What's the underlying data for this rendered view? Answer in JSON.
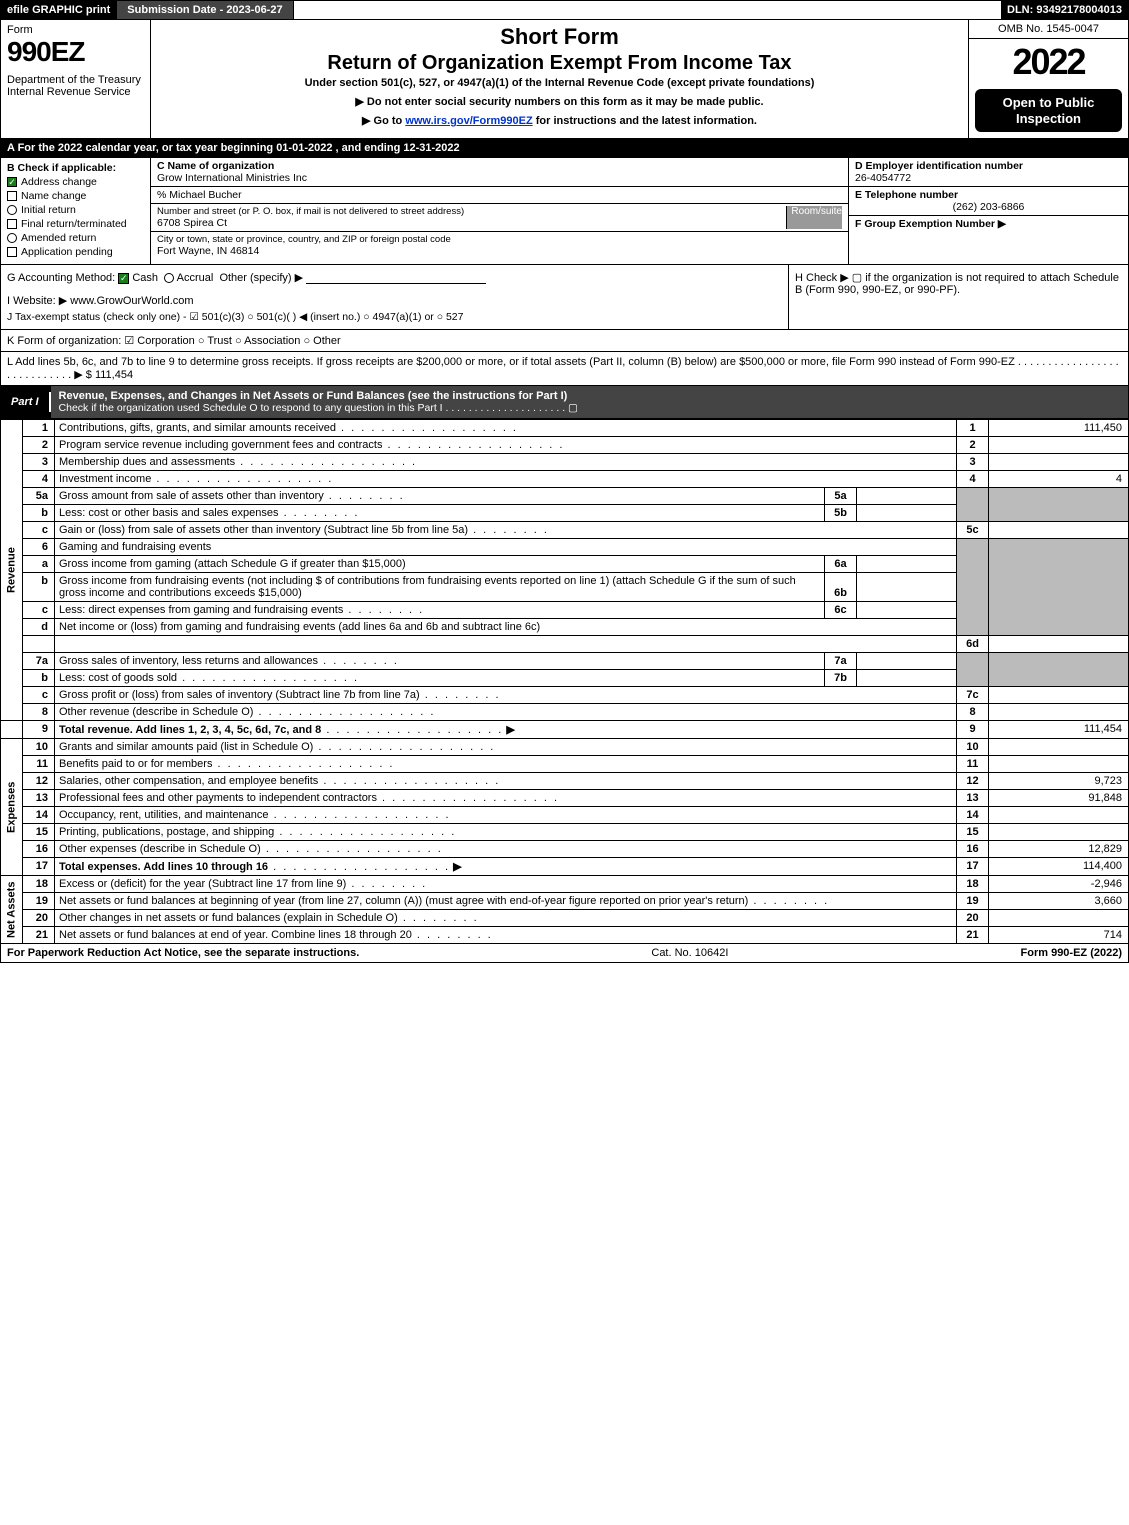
{
  "top": {
    "efile": "efile GRAPHIC print",
    "submission": "Submission Date - 2023-06-27",
    "dln": "DLN: 93492178004013"
  },
  "header": {
    "form_word": "Form",
    "form_no": "990EZ",
    "dept": "Department of the Treasury\nInternal Revenue Service",
    "title1": "Short Form",
    "title2": "Return of Organization Exempt From Income Tax",
    "subtitle": "Under section 501(c), 527, or 4947(a)(1) of the Internal Revenue Code (except private foundations)",
    "instr1": "▶ Do not enter social security numbers on this form as it may be made public.",
    "instr2_pre": "▶ Go to ",
    "instr2_link": "www.irs.gov/Form990EZ",
    "instr2_post": " for instructions and the latest information.",
    "omb": "OMB No. 1545-0047",
    "year": "2022",
    "inspection": "Open to Public Inspection"
  },
  "row_a": "A  For the 2022 calendar year, or tax year beginning 01-01-2022 , and ending 12-31-2022",
  "col_b": {
    "heading": "B  Check if applicable:",
    "items": [
      {
        "label": "Address change",
        "checked": true,
        "shape": "box"
      },
      {
        "label": "Name change",
        "checked": false,
        "shape": "box"
      },
      {
        "label": "Initial return",
        "checked": false,
        "shape": "circle"
      },
      {
        "label": "Final return/terminated",
        "checked": false,
        "shape": "box"
      },
      {
        "label": "Amended return",
        "checked": false,
        "shape": "circle"
      },
      {
        "label": "Application pending",
        "checked": false,
        "shape": "box"
      }
    ]
  },
  "col_c": {
    "name_label": "C Name of organization",
    "name": "Grow International Ministries Inc",
    "care_of": "% Michael Bucher",
    "street_label": "Number and street (or P. O. box, if mail is not delivered to street address)",
    "room_label": "Room/suite",
    "street": "6708 Spirea Ct",
    "city_label": "City or town, state or province, country, and ZIP or foreign postal code",
    "city": "Fort Wayne, IN  46814"
  },
  "col_def": {
    "d_label": "D Employer identification number",
    "d_value": "26-4054772",
    "e_label": "E Telephone number",
    "e_value": "(262) 203-6866",
    "f_label": "F Group Exemption Number  ▶"
  },
  "row_g": {
    "label": "G Accounting Method:",
    "cash": "Cash",
    "accrual": "Accrual",
    "other": "Other (specify) ▶"
  },
  "row_h": "H  Check ▶  ▢  if the organization is not required to attach Schedule B (Form 990, 990-EZ, or 990-PF).",
  "row_i": {
    "label": "I Website: ▶",
    "value": "www.GrowOurWorld.com"
  },
  "row_j": "J Tax-exempt status (check only one) - ☑ 501(c)(3)  ○ 501(c)(  ) ◀ (insert no.)  ○ 4947(a)(1) or  ○ 527",
  "row_k": "K Form of organization:  ☑ Corporation  ○ Trust  ○ Association  ○ Other",
  "row_l": {
    "text": "L Add lines 5b, 6c, and 7b to line 9 to determine gross receipts. If gross receipts are $200,000 or more, or if total assets (Part II, column (B) below) are $500,000 or more, file Form 990 instead of Form 990-EZ .  .  .  .  .  .  .  .  .  .  .  .  .  .  .  .  .  .  .  .  .  .  .  .  .  .  .  . ▶ $",
    "amount": "111,454"
  },
  "part1": {
    "label": "Part I",
    "title": "Revenue, Expenses, and Changes in Net Assets or Fund Balances (see the instructions for Part I)",
    "sub": "Check if the organization used Schedule O to respond to any question in this Part I .  .  .  .  .  .  .  .  .  .  .  .  .  .  .  .  .  .  .  .  .  ▢"
  },
  "sides": {
    "revenue": "Revenue",
    "expenses": "Expenses",
    "netassets": "Net Assets"
  },
  "lines": {
    "l1": {
      "desc": "Contributions, gifts, grants, and similar amounts received",
      "num": "1",
      "amount": "111,450"
    },
    "l2": {
      "desc": "Program service revenue including government fees and contracts",
      "num": "2",
      "amount": ""
    },
    "l3": {
      "desc": "Membership dues and assessments",
      "num": "3",
      "amount": ""
    },
    "l4": {
      "desc": "Investment income",
      "num": "4",
      "amount": "4"
    },
    "l5a": {
      "desc": "Gross amount from sale of assets other than inventory",
      "innum": "5a"
    },
    "l5b": {
      "desc": "Less: cost or other basis and sales expenses",
      "innum": "5b"
    },
    "l5c": {
      "desc": "Gain or (loss) from sale of assets other than inventory (Subtract line 5b from line 5a)",
      "num": "5c",
      "amount": ""
    },
    "l6": {
      "desc": "Gaming and fundraising events"
    },
    "l6a": {
      "desc": "Gross income from gaming (attach Schedule G if greater than $15,000)",
      "innum": "6a"
    },
    "l6b": {
      "desc": "Gross income from fundraising events (not including $                       of contributions from fundraising events reported on line 1) (attach Schedule G if the sum of such gross income and contributions exceeds $15,000)",
      "innum": "6b"
    },
    "l6c": {
      "desc": "Less: direct expenses from gaming and fundraising events",
      "innum": "6c"
    },
    "l6d": {
      "desc": "Net income or (loss) from gaming and fundraising events (add lines 6a and 6b and subtract line 6c)",
      "num": "6d",
      "amount": ""
    },
    "l7a": {
      "desc": "Gross sales of inventory, less returns and allowances",
      "innum": "7a"
    },
    "l7b": {
      "desc": "Less: cost of goods sold",
      "innum": "7b"
    },
    "l7c": {
      "desc": "Gross profit or (loss) from sales of inventory (Subtract line 7b from line 7a)",
      "num": "7c",
      "amount": ""
    },
    "l8": {
      "desc": "Other revenue (describe in Schedule O)",
      "num": "8",
      "amount": ""
    },
    "l9": {
      "desc": "Total revenue. Add lines 1, 2, 3, 4, 5c, 6d, 7c, and 8",
      "num": "9",
      "amount": "111,454"
    },
    "l10": {
      "desc": "Grants and similar amounts paid (list in Schedule O)",
      "num": "10",
      "amount": ""
    },
    "l11": {
      "desc": "Benefits paid to or for members",
      "num": "11",
      "amount": ""
    },
    "l12": {
      "desc": "Salaries, other compensation, and employee benefits",
      "num": "12",
      "amount": "9,723"
    },
    "l13": {
      "desc": "Professional fees and other payments to independent contractors",
      "num": "13",
      "amount": "91,848"
    },
    "l14": {
      "desc": "Occupancy, rent, utilities, and maintenance",
      "num": "14",
      "amount": ""
    },
    "l15": {
      "desc": "Printing, publications, postage, and shipping",
      "num": "15",
      "amount": ""
    },
    "l16": {
      "desc": "Other expenses (describe in Schedule O)",
      "num": "16",
      "amount": "12,829"
    },
    "l17": {
      "desc": "Total expenses. Add lines 10 through 16",
      "num": "17",
      "amount": "114,400"
    },
    "l18": {
      "desc": "Excess or (deficit) for the year (Subtract line 17 from line 9)",
      "num": "18",
      "amount": "-2,946"
    },
    "l19": {
      "desc": "Net assets or fund balances at beginning of year (from line 27, column (A)) (must agree with end-of-year figure reported on prior year's return)",
      "num": "19",
      "amount": "3,660"
    },
    "l20": {
      "desc": "Other changes in net assets or fund balances (explain in Schedule O)",
      "num": "20",
      "amount": ""
    },
    "l21": {
      "desc": "Net assets or fund balances at end of year. Combine lines 18 through 20",
      "num": "21",
      "amount": "714"
    }
  },
  "footer": {
    "left": "For Paperwork Reduction Act Notice, see the separate instructions.",
    "mid": "Cat. No. 10642I",
    "right": "Form 990-EZ (2022)"
  }
}
